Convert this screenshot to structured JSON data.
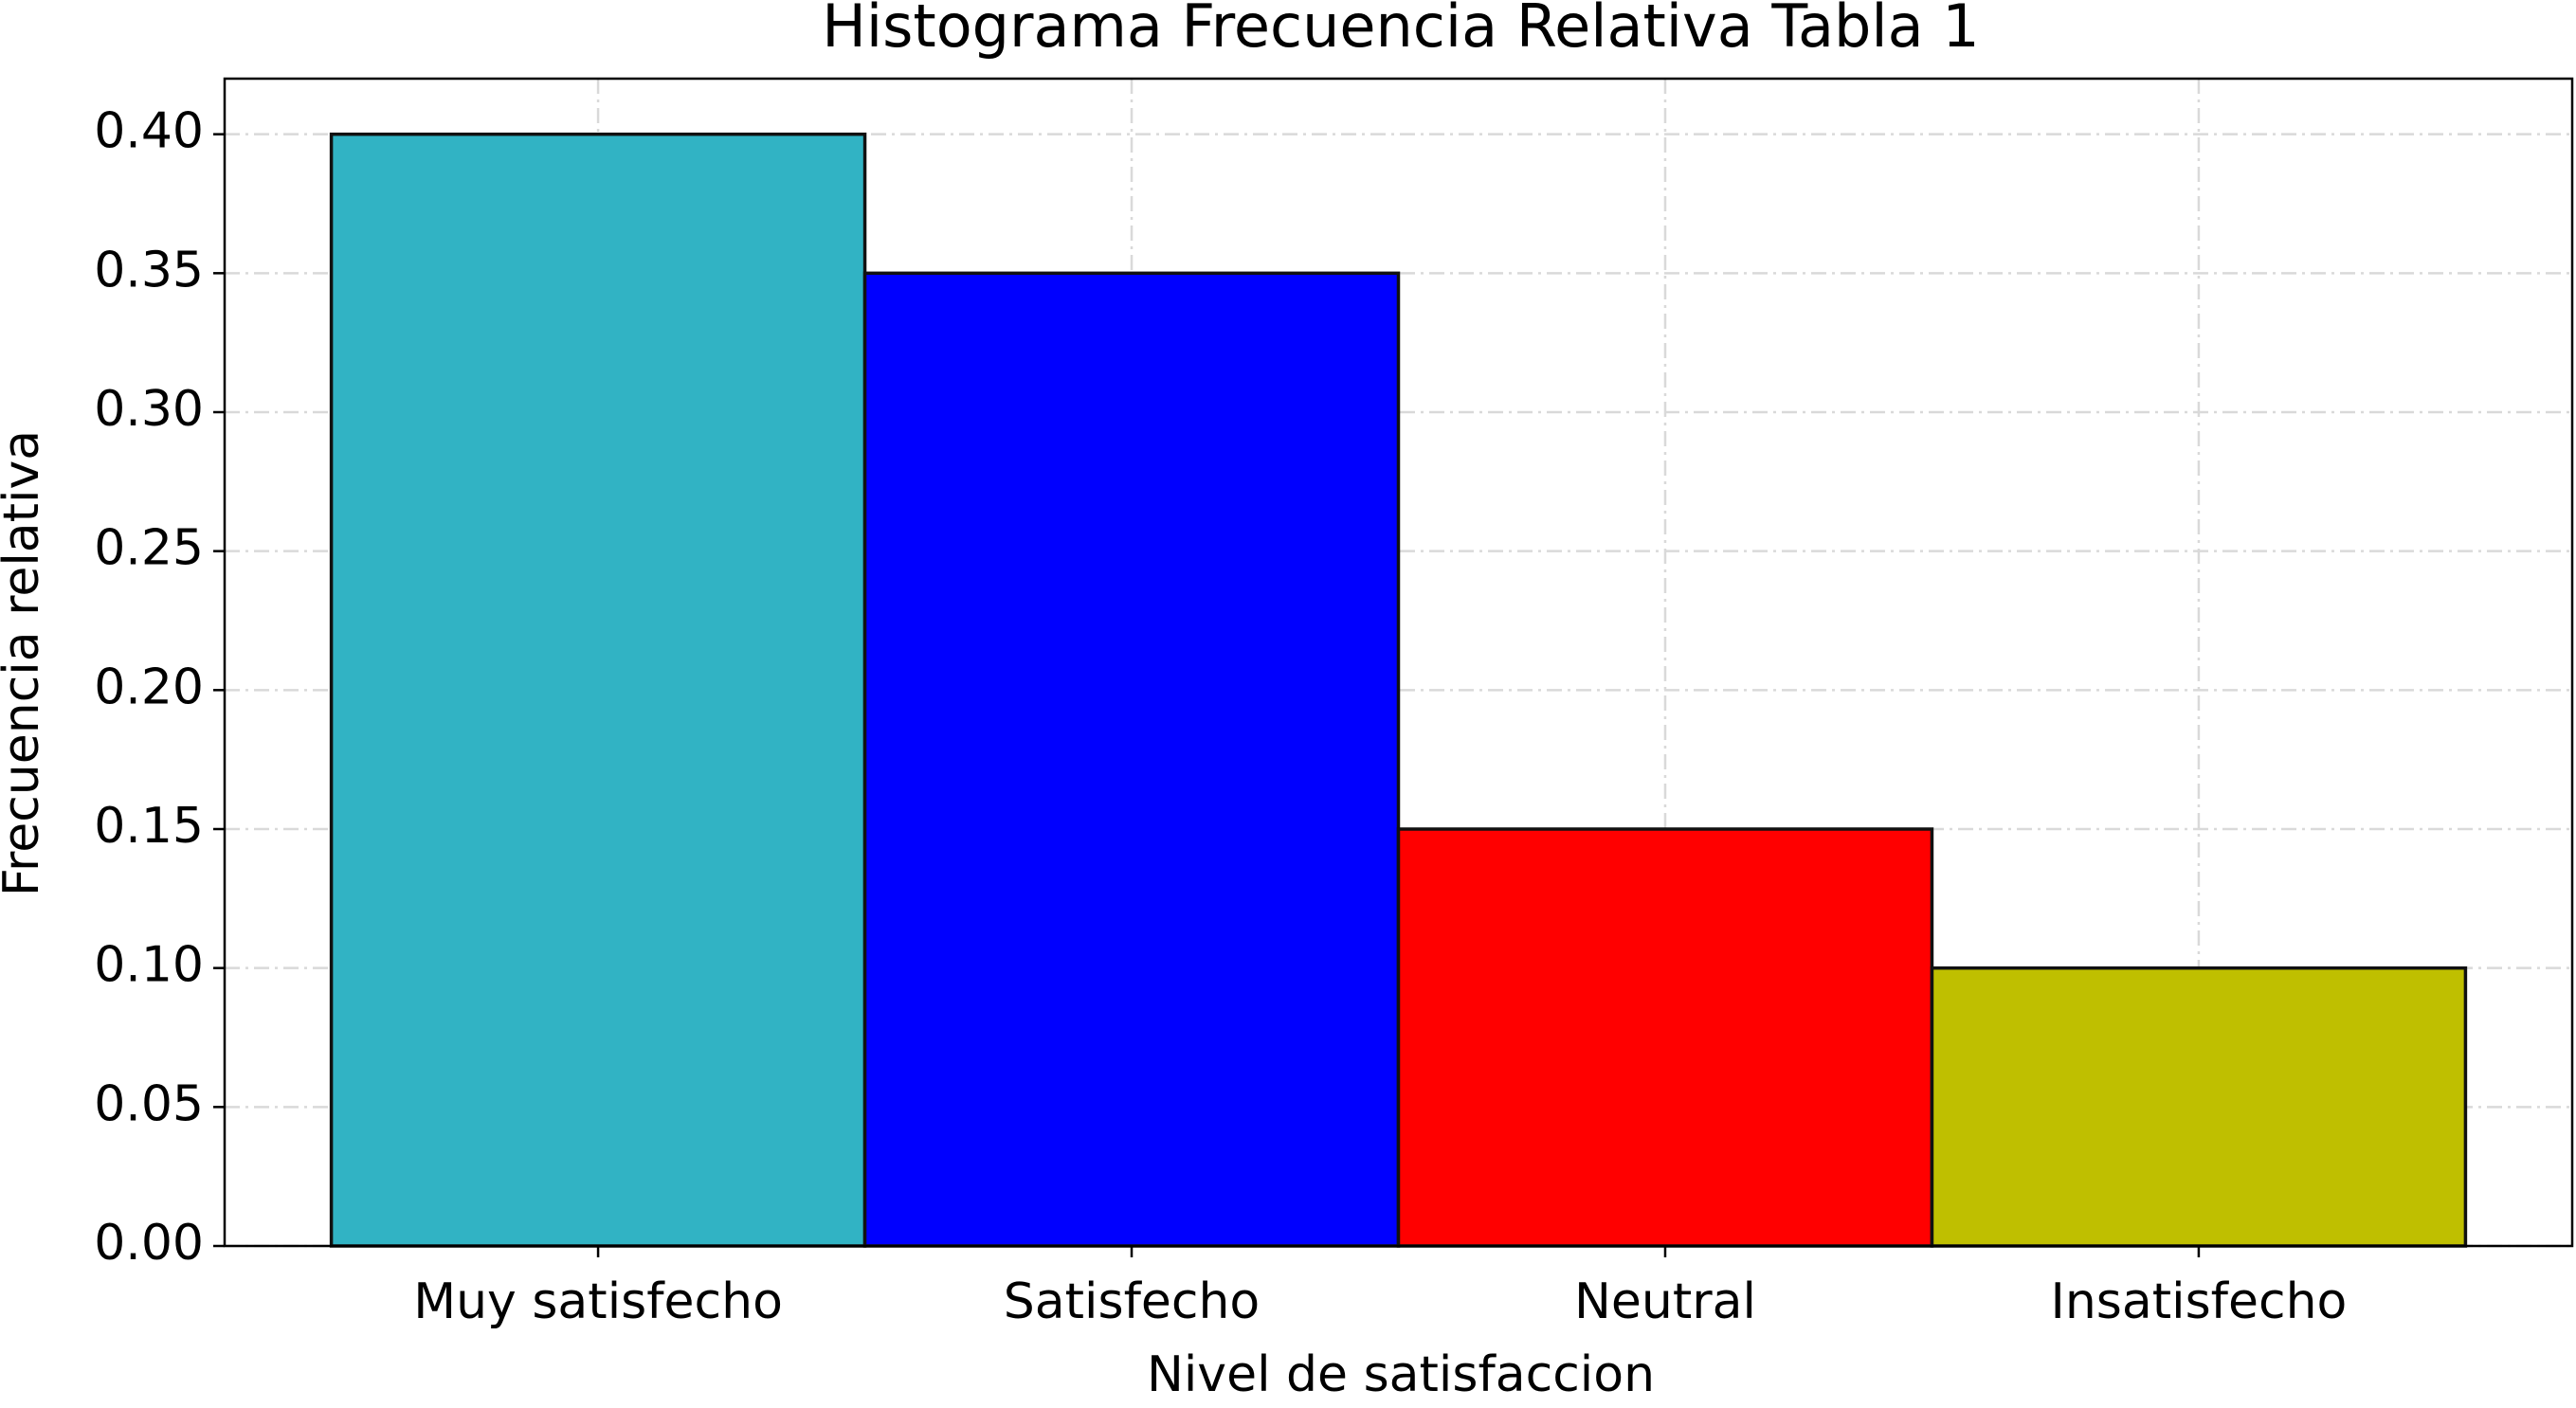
{
  "chart_data": {
    "type": "bar",
    "title": "Histograma Frecuencia Relativa Tabla 1",
    "x_label": "Nivel de satisfaccion",
    "y_label": "Frecuencia relativa",
    "categories": [
      "Muy satisfecho",
      "Satisfecho",
      "Neutral",
      "Insatisfecho"
    ],
    "values": [
      0.4,
      0.35,
      0.15,
      0.1
    ],
    "colors": [
      "#31b3c4",
      "#0000ff",
      "#ff0000",
      "#bfbf00"
    ],
    "ylim": [
      0,
      0.42
    ],
    "yticks": [
      {
        "value": 0,
        "label": "0.00"
      },
      {
        "value": 0.05,
        "label": "0.05"
      },
      {
        "value": 0.1,
        "label": "0.10"
      },
      {
        "value": 0.15,
        "label": "0.15"
      },
      {
        "value": 0.2,
        "label": "0.20"
      },
      {
        "value": 0.25,
        "label": "0.25"
      },
      {
        "value": 0.3,
        "label": "0.30"
      },
      {
        "value": 0.35,
        "label": "0.35"
      },
      {
        "value": 0.4,
        "label": "0.40"
      }
    ],
    "grid": true
  }
}
